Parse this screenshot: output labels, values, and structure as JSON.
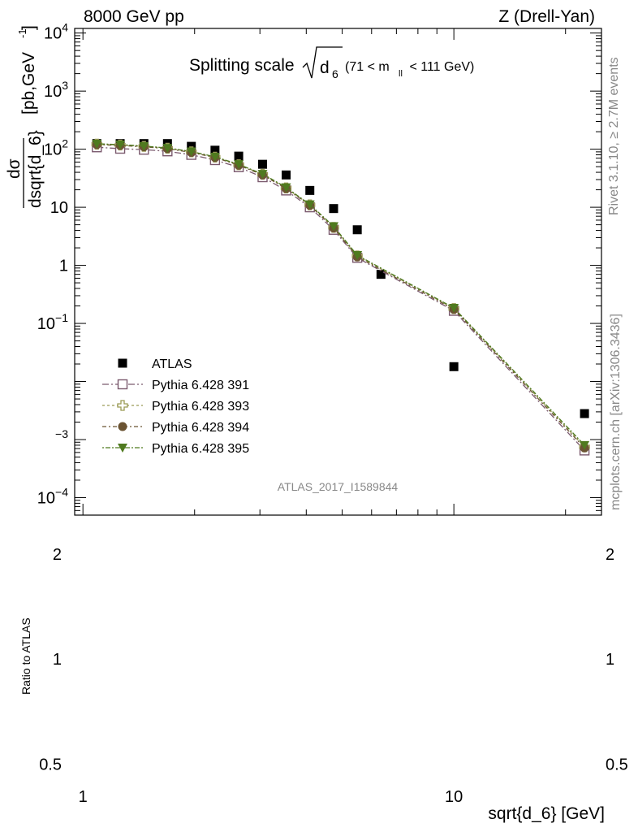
{
  "header": {
    "energy_label": "8000 GeV pp",
    "process_label": "Z (Drell-Yan)"
  },
  "side": {
    "rivet_label": "Rivet 3.1.10, ≥ 2.7M events",
    "mcplots_label": "mcplots.cern.ch [arXiv:1306.3436]"
  },
  "chart_data": [
    {
      "type": "scatter",
      "title": "Splitting scale",
      "title_symbol": "d",
      "title_symbol_sub": "6",
      "title_cut_left": "(71 < m",
      "title_cut_sub": "ll",
      "title_cut_right": " < 111 GeV)",
      "ylabel_num": "dσ",
      "ylabel_den": "dsqrt{d_6}",
      "ylabel_units": "[pb,GeV",
      "ylabel_units_sup": "-1",
      "ylabel_units_close": "]",
      "analysis_label": "ATLAS_2017_I1589844",
      "x_scale": "log",
      "y_scale": "log",
      "xlim": [
        0.95,
        25
      ],
      "ylim": [
        5e-05,
        12000
      ],
      "yticks": [
        {
          "value": 10000,
          "base": "10",
          "exp": "4"
        },
        {
          "value": 1000,
          "base": "10",
          "exp": "3"
        },
        {
          "value": 100,
          "base": "10",
          "exp": "2"
        },
        {
          "value": 10,
          "base": "10",
          "exp": ""
        },
        {
          "value": 1,
          "base": "1",
          "exp": ""
        },
        {
          "value": 0.1,
          "base": "10",
          "exp": "−1"
        },
        {
          "value": 0.001,
          "base": "",
          "exp": "−3"
        },
        {
          "value": 0.0001,
          "base": "10",
          "exp": "−4"
        }
      ],
      "legend_position": "lower-left",
      "series": [
        {
          "name": "ATLAS",
          "marker": "filled-square",
          "color": "#000000",
          "x": [
            1.09,
            1.26,
            1.46,
            1.69,
            1.96,
            2.27,
            2.63,
            3.05,
            3.53,
            4.09,
            4.74,
            5.49,
            6.36,
            10.0,
            22.5
          ],
          "y": [
            125,
            125,
            125,
            125,
            112,
            96,
            76,
            55,
            36,
            19.5,
            9.5,
            4.1,
            0.7,
            0.018,
            0.0028
          ]
        },
        {
          "name": "Pythia 6.428 391",
          "marker": "open-square",
          "color": "#7b5a6e",
          "x": [
            1.09,
            1.26,
            1.46,
            1.69,
            1.96,
            2.27,
            2.63,
            3.05,
            3.53,
            4.09,
            4.74,
            5.49,
            10.0,
            22.5
          ],
          "y": [
            108,
            102,
            98,
            92,
            80,
            65,
            49,
            33,
            19.5,
            10,
            4.1,
            1.35,
            0.165,
            0.00065
          ]
        },
        {
          "name": "Pythia 6.428 393",
          "marker": "open-cross",
          "color": "#9a9a55",
          "x": [
            1.09,
            1.26,
            1.46,
            1.69,
            1.96,
            2.27,
            2.63,
            3.05,
            3.53,
            4.09,
            4.74,
            5.49,
            10.0,
            22.5
          ],
          "y": [
            122,
            118,
            112,
            104,
            90,
            73,
            54,
            37,
            21.5,
            11,
            4.5,
            1.45,
            0.18,
            0.00075
          ]
        },
        {
          "name": "Pythia 6.428 394",
          "marker": "filled-circle",
          "color": "#6b5433",
          "x": [
            1.09,
            1.26,
            1.46,
            1.69,
            1.96,
            2.27,
            2.63,
            3.05,
            3.53,
            4.09,
            4.74,
            5.49,
            10.0,
            22.5
          ],
          "y": [
            120,
            116,
            110,
            102,
            88,
            72,
            53,
            36,
            21,
            10.8,
            4.4,
            1.4,
            0.175,
            0.00072
          ]
        },
        {
          "name": "Pythia 6.428 395",
          "marker": "filled-triangle-down",
          "color": "#4f7a1f",
          "x": [
            1.09,
            1.26,
            1.46,
            1.69,
            1.96,
            2.27,
            2.63,
            3.05,
            3.53,
            4.09,
            4.74,
            5.49,
            10.0,
            22.5
          ],
          "y": [
            124,
            120,
            113,
            105,
            91,
            74,
            55,
            37.5,
            22,
            11.2,
            4.7,
            1.5,
            0.185,
            0.0008
          ]
        }
      ]
    },
    {
      "type": "scatter",
      "ylabel": "Ratio to ATLAS",
      "xlabel": "sqrt{d_6} [GeV]",
      "x_scale": "log",
      "y_scale": "log",
      "xlim": [
        0.95,
        25
      ],
      "ylim": [
        0.45,
        2.3
      ],
      "yticks": [
        {
          "value": 2,
          "label": "2"
        },
        {
          "value": 1,
          "label": "1"
        },
        {
          "value": 0.5,
          "label": "0.5"
        }
      ],
      "xticks": [
        {
          "value": 1,
          "label": "1"
        },
        {
          "value": 10,
          "label": "10"
        }
      ]
    }
  ]
}
